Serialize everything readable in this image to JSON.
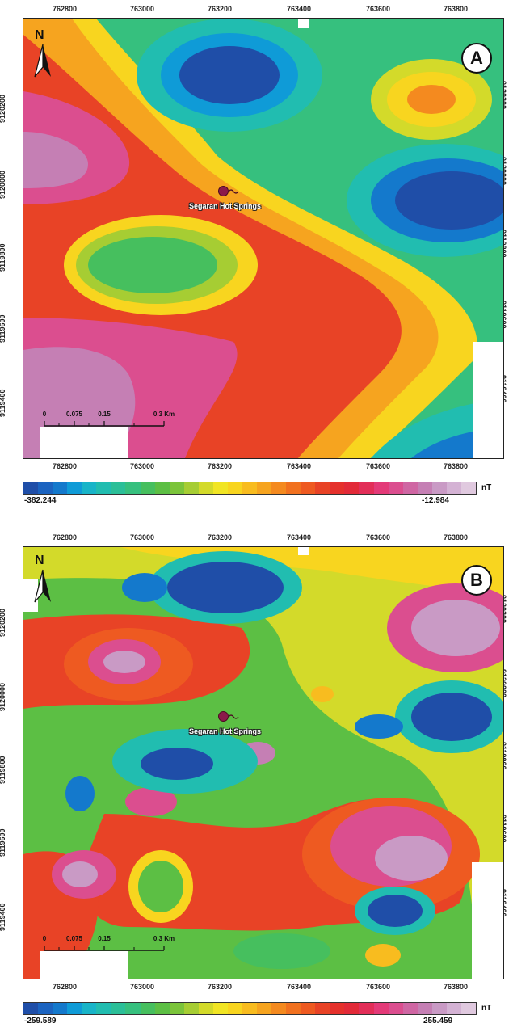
{
  "palette": [
    "#1f4ea8",
    "#1b63c0",
    "#1479cc",
    "#0f9bd7",
    "#18b4c8",
    "#21bdb0",
    "#2bbf98",
    "#36c07e",
    "#46bf5e",
    "#5cbf44",
    "#7bc43a",
    "#a6cd33",
    "#d3da2a",
    "#f1e524",
    "#f8d51f",
    "#f8bc1f",
    "#f6a41f",
    "#f48a1f",
    "#f1711f",
    "#ee5a21",
    "#e84326",
    "#e5312c",
    "#e22a38",
    "#e22e58",
    "#e33a78",
    "#db4e8f",
    "#cf66a3",
    "#c57fb4",
    "#c99ac5",
    "#d4b2d4",
    "#e0c9df"
  ],
  "panel_a": {
    "badge": "A",
    "north": "N",
    "x_ticks": [
      "762800",
      "763000",
      "763200",
      "763400",
      "763600",
      "763800"
    ],
    "x_ticks_bottom": [
      "762800",
      "763000",
      "763200",
      "763400",
      "763600",
      "763800"
    ],
    "y_ticks_left": [
      "9120200",
      "9120000",
      "9119800",
      "9119600",
      "9119400"
    ],
    "y_ticks_right": [
      "9120200",
      "9120000",
      "9119800",
      "9119600",
      "9119400"
    ],
    "site_label": "Segaran Hot Springs",
    "scale": {
      "labels": [
        "0",
        "0.075",
        "0.15",
        "0.3 Km"
      ]
    },
    "colorbar": {
      "min": "-382.244",
      "max": "-12.984",
      "unit": "nT"
    }
  },
  "panel_b": {
    "badge": "B",
    "north": "N",
    "x_ticks": [
      "762800",
      "763000",
      "763200",
      "763400",
      "763600",
      "763800"
    ],
    "x_ticks_bottom": [
      "762800",
      "763000",
      "763200",
      "763400",
      "763600",
      "763800"
    ],
    "y_ticks_left": [
      "9120200",
      "9120000",
      "9119800",
      "9119600",
      "9119400"
    ],
    "y_ticks_right": [
      "9120200",
      "9120000",
      "9119800",
      "9119600",
      "9119400"
    ],
    "site_label": "Segaran Hot Springs",
    "scale": {
      "labels": [
        "0",
        "0.075",
        "0.15",
        "0.3 Km"
      ]
    },
    "colorbar": {
      "min": "-259.589",
      "max": "255.459",
      "unit": "nT"
    }
  }
}
